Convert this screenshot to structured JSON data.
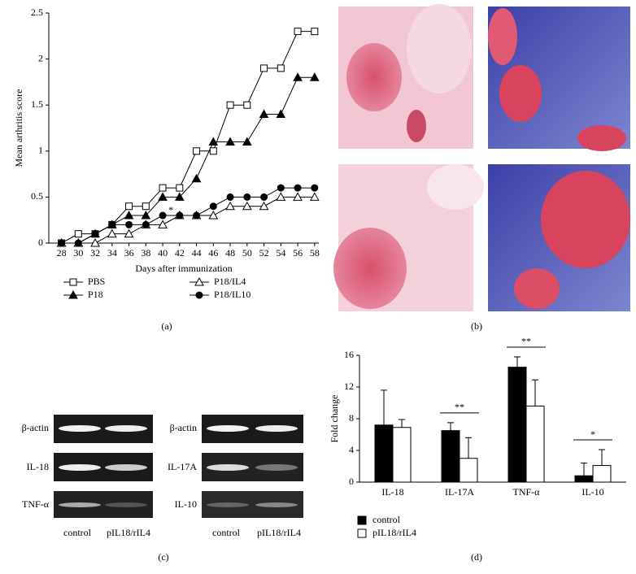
{
  "chart_data": [
    {
      "type": "line",
      "panel_label": "(a)",
      "x_label": "Days after immunization",
      "y_label": "Mean arthritis score",
      "x": [
        28,
        30,
        32,
        34,
        36,
        38,
        40,
        42,
        44,
        46,
        48,
        50,
        52,
        54,
        56,
        58
      ],
      "xlim": [
        26.5,
        58.5
      ],
      "xticks": [
        28,
        30,
        32,
        34,
        36,
        38,
        40,
        42,
        44,
        46,
        48,
        50,
        52,
        54,
        56,
        58
      ],
      "ylim": [
        0,
        2.5
      ],
      "yticks": [
        0,
        0.5,
        1,
        1.5,
        2,
        2.5
      ],
      "series": [
        {
          "name": "PBS",
          "color": "#000000",
          "marker": "square",
          "filled": false,
          "values": [
            0,
            0.1,
            0.1,
            0.2,
            0.4,
            0.4,
            0.6,
            0.6,
            1.0,
            1.0,
            1.5,
            1.5,
            1.9,
            1.9,
            2.3,
            2.3
          ]
        },
        {
          "name": "P18",
          "color": "#000000",
          "marker": "triangle",
          "filled": true,
          "values": [
            0,
            0,
            0.1,
            0.2,
            0.3,
            0.3,
            0.5,
            0.5,
            0.7,
            1.1,
            1.1,
            1.1,
            1.4,
            1.4,
            1.8,
            1.8
          ]
        },
        {
          "name": "P18/IL4",
          "color": "#000000",
          "marker": "triangle",
          "filled": false,
          "values": [
            0,
            0,
            0,
            0.1,
            0.1,
            0.2,
            0.2,
            0.3,
            0.3,
            0.3,
            0.4,
            0.4,
            0.4,
            0.5,
            0.5,
            0.5
          ]
        },
        {
          "name": "P18/IL10",
          "color": "#000000",
          "marker": "circle",
          "filled": true,
          "values": [
            0,
            0,
            0.1,
            0.2,
            0.2,
            0.2,
            0.3,
            0.3,
            0.3,
            0.4,
            0.5,
            0.5,
            0.5,
            0.6,
            0.6,
            0.6
          ]
        }
      ],
      "annotation": "*"
    },
    {
      "type": "bar",
      "panel_label": "(d)",
      "y_label": "Fold change",
      "categories": [
        "IL-18",
        "IL-17A",
        "TNF-α",
        "IL-10"
      ],
      "ylim": [
        0,
        16
      ],
      "yticks": [
        0,
        4,
        8,
        12,
        16
      ],
      "series": [
        {
          "name": "control",
          "color": "#000000",
          "values": [
            7.2,
            6.5,
            14.5,
            0.8
          ],
          "errors": [
            4.4,
            1.0,
            1.3,
            1.6
          ]
        },
        {
          "name": "pIL18/rIL4",
          "color": "#ffffff",
          "values": [
            6.9,
            3.0,
            9.6,
            2.1
          ],
          "errors": [
            1.0,
            2.6,
            3.3,
            2.0
          ]
        }
      ],
      "annotations": [
        {
          "text": "**",
          "category": "IL-17A"
        },
        {
          "text": "**",
          "category": "TNF-α"
        },
        {
          "text": "*",
          "category": "IL-10"
        }
      ]
    }
  ],
  "histology": {
    "panel_label": "(b)"
  },
  "gel": {
    "panel_label": "(c)",
    "left_rows": [
      "β-actin",
      "IL-18",
      "TNF-α"
    ],
    "right_rows": [
      "β-actin",
      "IL-17A",
      "IL-10"
    ],
    "lanes": [
      "control",
      "pIL18/rIL4"
    ]
  }
}
